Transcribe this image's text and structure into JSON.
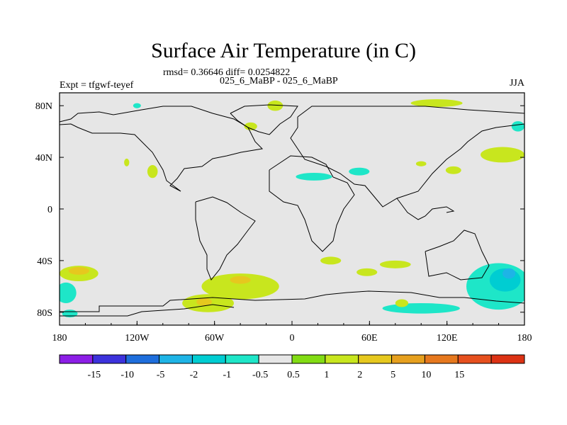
{
  "title": "Surface Air Temperature (in C)",
  "stats": "rmsd= 0.36646 diff= 0.0254822",
  "subtitle": "025_6_MaBP - 025_6_MaBP",
  "expt": "Expt = tfgwf-teyef",
  "season": "JJA",
  "chart_data": {
    "type": "heatmap",
    "title": "Surface Air Temperature (in C)",
    "xlim": [
      -180,
      180
    ],
    "ylim": [
      -90,
      90
    ],
    "x_ticks": [
      {
        "value": -180,
        "label": "180"
      },
      {
        "value": -120,
        "label": "120W"
      },
      {
        "value": -60,
        "label": "60W"
      },
      {
        "value": 0,
        "label": "0"
      },
      {
        "value": 60,
        "label": "60E"
      },
      {
        "value": 120,
        "label": "120E"
      },
      {
        "value": 180,
        "label": "180"
      }
    ],
    "y_ticks": [
      {
        "value": 80,
        "label": "80N"
      },
      {
        "value": 40,
        "label": "40N"
      },
      {
        "value": 0,
        "label": "0"
      },
      {
        "value": -40,
        "label": "40S"
      },
      {
        "value": -80,
        "label": "80S"
      }
    ],
    "colorbar": {
      "colors": [
        "#8c1ee6",
        "#3c32dc",
        "#1e6edc",
        "#1eb4e6",
        "#00cdd2",
        "#1ee6c8",
        "#e6e6e6",
        "#82dc14",
        "#c8e61e",
        "#e6c81e",
        "#e6a01e",
        "#e6781e",
        "#e6501e",
        "#dc3214"
      ],
      "labels": [
        "-15",
        "-10",
        "-5",
        "-2",
        "-1",
        "-0.5",
        "0.5",
        "1",
        "2",
        "5",
        "10",
        "15"
      ]
    },
    "anomaly_regions": [
      {
        "level": "1",
        "cx": -165,
        "cy": -50,
        "rx": 15,
        "ry": 6
      },
      {
        "level": "2",
        "cx": -165,
        "cy": -48,
        "rx": 8,
        "ry": 3
      },
      {
        "level": "1",
        "cx": -40,
        "cy": -60,
        "rx": 30,
        "ry": 10
      },
      {
        "level": "2",
        "cx": -40,
        "cy": -55,
        "rx": 8,
        "ry": 3
      },
      {
        "level": "1",
        "cx": -65,
        "cy": -73,
        "rx": 20,
        "ry": 7
      },
      {
        "level": "2",
        "cx": -68,
        "cy": -72,
        "rx": 6,
        "ry": 3
      },
      {
        "level": "1",
        "cx": 30,
        "cy": -40,
        "rx": 8,
        "ry": 3
      },
      {
        "level": "1",
        "cx": 163,
        "cy": 42,
        "rx": 17,
        "ry": 6
      },
      {
        "level": "1",
        "cx": 112,
        "cy": 82,
        "rx": 20,
        "ry": 3
      },
      {
        "level": "1",
        "cx": -13,
        "cy": 80,
        "rx": 6,
        "ry": 4
      },
      {
        "level": "1",
        "cx": -32,
        "cy": 64,
        "rx": 5,
        "ry": 3
      },
      {
        "level": "1",
        "cx": -108,
        "cy": 29,
        "rx": 4,
        "ry": 5
      },
      {
        "level": "1",
        "cx": -128,
        "cy": 36,
        "rx": 2,
        "ry": 3
      },
      {
        "level": "1",
        "cx": 100,
        "cy": 35,
        "rx": 4,
        "ry": 2
      },
      {
        "level": "1",
        "cx": 125,
        "cy": 30,
        "rx": 6,
        "ry": 3
      },
      {
        "level": "1",
        "cx": 80,
        "cy": -43,
        "rx": 12,
        "ry": 3
      },
      {
        "level": "1",
        "cx": 58,
        "cy": -49,
        "rx": 8,
        "ry": 3
      },
      {
        "level": "-0.5",
        "cx": 175,
        "cy": 64,
        "rx": 5,
        "ry": 4
      },
      {
        "level": "-0.5",
        "cx": 17,
        "cy": 25,
        "rx": 14,
        "ry": 3
      },
      {
        "level": "-0.5",
        "cx": 52,
        "cy": 29,
        "rx": 8,
        "ry": 3
      },
      {
        "level": "-0.5",
        "cx": -120,
        "cy": 80,
        "rx": 3,
        "ry": 2
      },
      {
        "level": "-0.5",
        "cx": -175,
        "cy": -65,
        "rx": 8,
        "ry": 8
      },
      {
        "level": "-0.5",
        "cx": -172,
        "cy": -81,
        "rx": 6,
        "ry": 3
      },
      {
        "level": "-0.5",
        "cx": 160,
        "cy": -60,
        "rx": 25,
        "ry": 18
      },
      {
        "level": "-1",
        "cx": 165,
        "cy": -55,
        "rx": 12,
        "ry": 9
      },
      {
        "level": "-2",
        "cx": 168,
        "cy": -50,
        "rx": 5,
        "ry": 4
      },
      {
        "level": "-0.5",
        "cx": 100,
        "cy": -77,
        "rx": 30,
        "ry": 4
      },
      {
        "level": "1",
        "cx": 85,
        "cy": -73,
        "rx": 5,
        "ry": 3
      }
    ]
  }
}
